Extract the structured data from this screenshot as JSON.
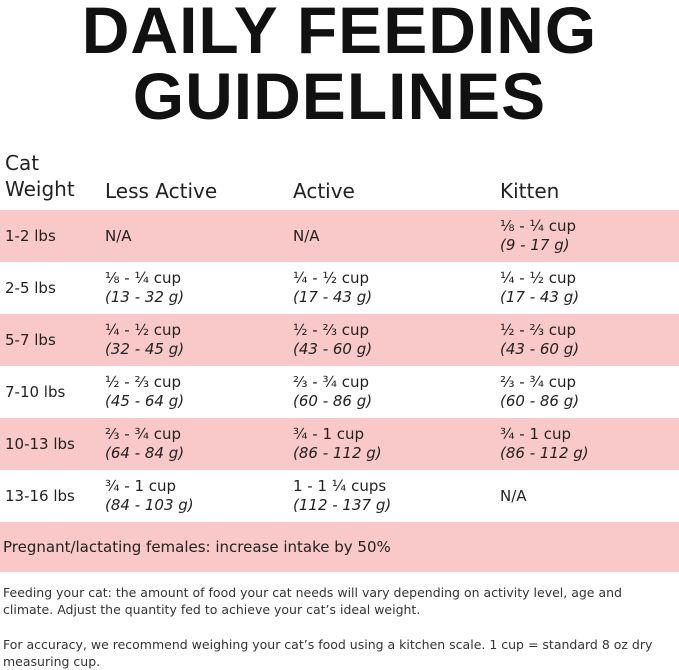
{
  "header": {
    "title_lines": [
      "DAILY FEEDING",
      "GUIDELINES"
    ]
  },
  "table": {
    "columns": [
      "Cat Weight",
      "Less Active",
      "Active",
      "Kitten"
    ],
    "rows": [
      {
        "weight": "1-2 lbs",
        "cells": [
          {
            "cup": "N/A"
          },
          {
            "cup": "N/A"
          },
          {
            "cup": "⅛ - ¼ cup",
            "grams": "(9 - 17 g)"
          }
        ]
      },
      {
        "weight": "2-5 lbs",
        "cells": [
          {
            "cup": "⅛ - ¼ cup",
            "grams": "(13 - 32 g)"
          },
          {
            "cup": "¼ - ½ cup",
            "grams": "(17 - 43 g)"
          },
          {
            "cup": "¼ - ½ cup",
            "grams": "(17 - 43 g)"
          }
        ]
      },
      {
        "weight": "5-7 lbs",
        "cells": [
          {
            "cup": "¼ - ½ cup",
            "grams": "(32 - 45 g)"
          },
          {
            "cup": "½ - ⅔ cup",
            "grams": "(43 - 60 g)"
          },
          {
            "cup": "½ - ⅔ cup",
            "grams": "(43 - 60 g)"
          }
        ]
      },
      {
        "weight": "7-10 lbs",
        "cells": [
          {
            "cup": "½ - ⅔ cup",
            "grams": "(45 - 64 g)"
          },
          {
            "cup": "⅔ - ¾ cup",
            "grams": "(60 - 86 g)"
          },
          {
            "cup": "⅔ - ¾ cup",
            "grams": "(60 - 86 g)"
          }
        ]
      },
      {
        "weight": "10-13 lbs",
        "cells": [
          {
            "cup": "⅔ - ¾ cup",
            "grams": "(64 - 84 g)"
          },
          {
            "cup": "¾ - 1 cup",
            "grams": "(86 - 112 g)"
          },
          {
            "cup": "¾ - 1 cup",
            "grams": "(86 - 112 g)"
          }
        ]
      },
      {
        "weight": "13-16 lbs",
        "cells": [
          {
            "cup": "¾ - 1 cup",
            "grams": "(84 - 103 g)"
          },
          {
            "cup": "1 - 1 ¼ cups",
            "grams": "(112 - 137 g)"
          },
          {
            "cup": "N/A"
          }
        ]
      }
    ],
    "note": "Pregnant/lactating females: increase intake by 50%"
  },
  "footer": {
    "paragraphs": [
      "Feeding your cat: the amount of food your cat needs will vary depending on activity level, age and climate. Adjust the quantity fed to achieve your cat’s ideal weight.",
      "For accuracy, we recommend weighing your cat’s food using a kitchen scale. 1 cup = standard 8 oz dry measuring cup."
    ]
  }
}
